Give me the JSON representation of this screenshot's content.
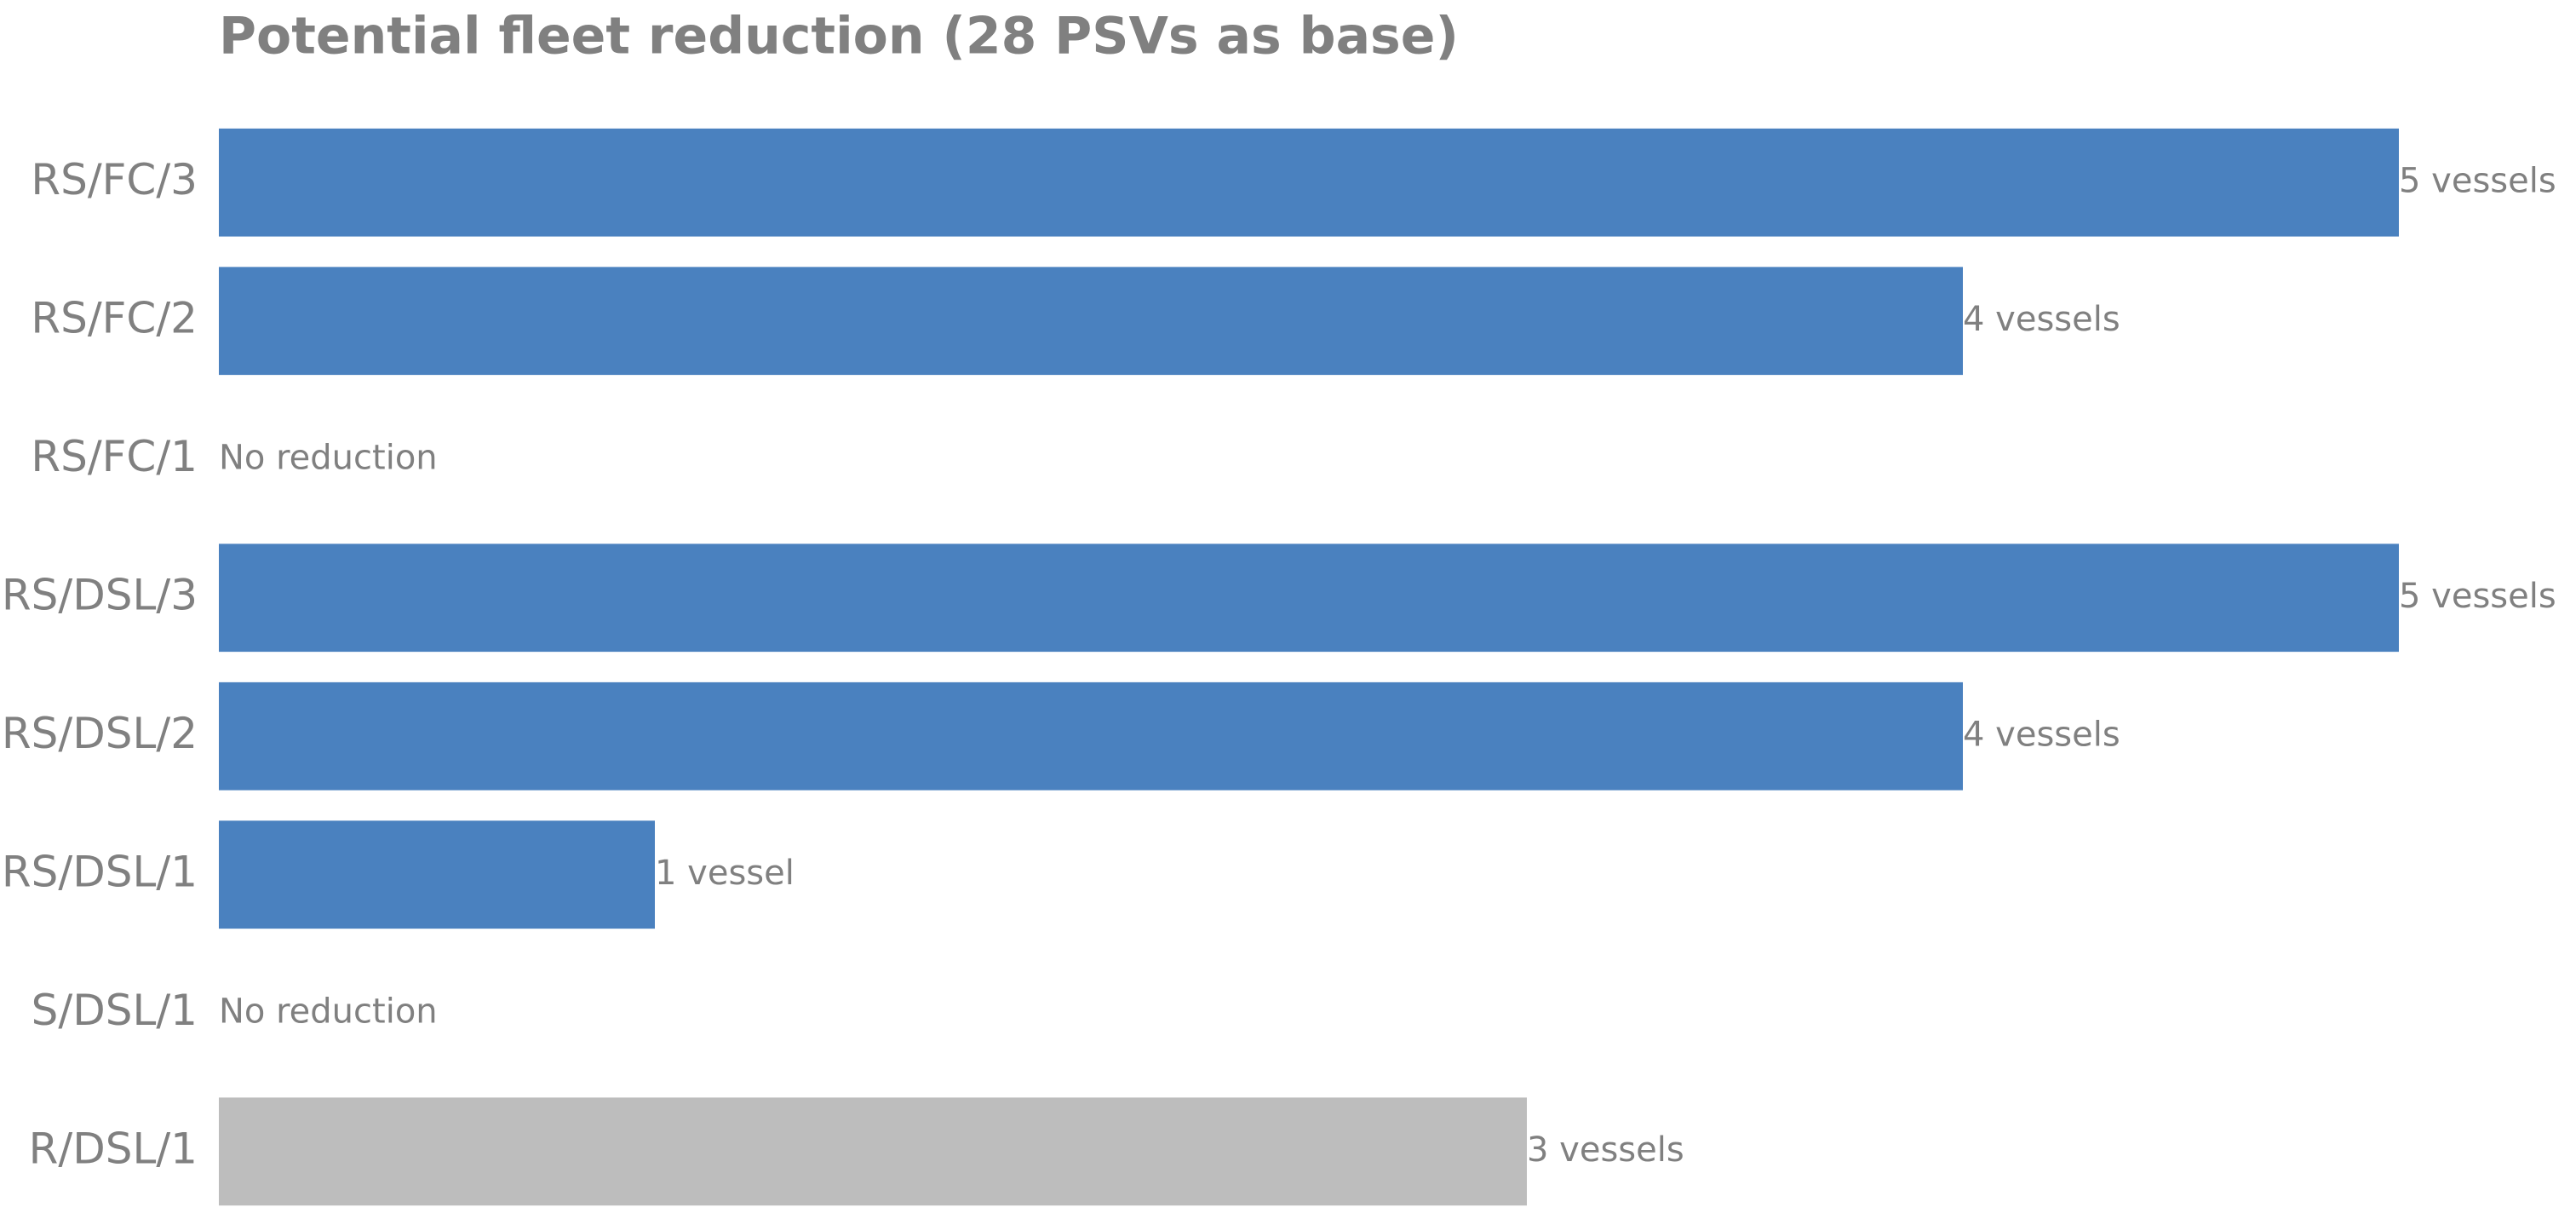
{
  "chart_data": {
    "type": "barh",
    "title": "Potential fleet reduction (28 PSVs as base)",
    "categories": [
      "RS/FC/3",
      "RS/FC/2",
      "RS/FC/1",
      "RS/DSL/3",
      "RS/DSL/2",
      "RS/DSL/1",
      "S/DSL/1",
      "R/DSL/1"
    ],
    "values": [
      5,
      4,
      0,
      5,
      4,
      1,
      0,
      3
    ],
    "value_labels": [
      "5 vessels",
      "4 vessels",
      "No reduction",
      "5 vessels",
      "4 vessels",
      "1 vessel",
      "No reduction",
      "3 vessels"
    ],
    "colors": [
      "#4a81bf",
      "#4a81bf",
      "#4a81bf",
      "#4a81bf",
      "#4a81bf",
      "#4a81bf",
      "#4a81bf",
      "#bdbdbd"
    ],
    "xlim": [
      0,
      5
    ]
  }
}
